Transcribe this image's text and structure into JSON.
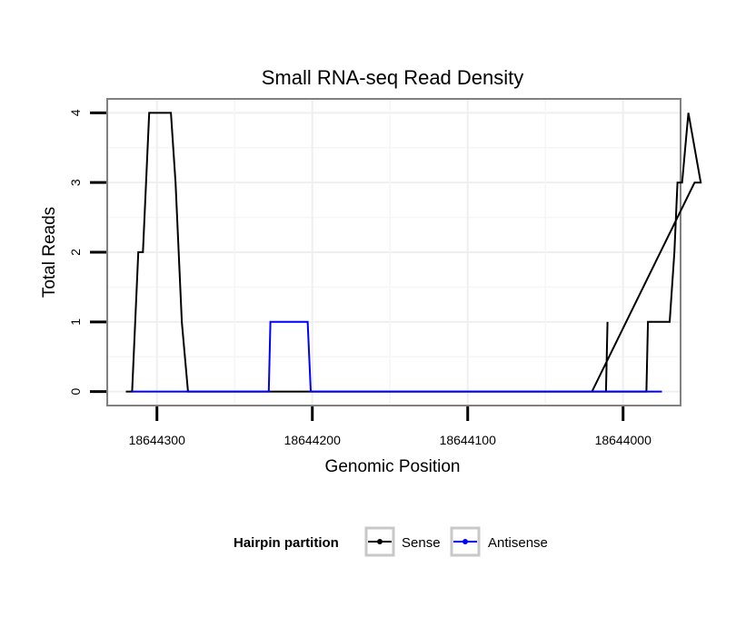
{
  "chart_data": {
    "type": "line",
    "title": "Small RNA-seq Read Density",
    "xlabel": "Genomic Position",
    "ylabel": "Total Reads",
    "x_reversed": true,
    "xlim": [
      18644332,
      18643963
    ],
    "ylim": [
      -0.2,
      4.2
    ],
    "x_ticks": [
      18644300,
      18644200,
      18644100,
      18644000
    ],
    "x_tick_labels": [
      "18644300",
      "18644200",
      "18644100",
      "18644000"
    ],
    "y_ticks": [
      0,
      1,
      2,
      3,
      4
    ],
    "y_tick_labels": [
      "0",
      "1",
      "2",
      "3",
      "4"
    ],
    "grid": true,
    "legend": {
      "title": "Hairpin partition",
      "position": "bottom"
    },
    "series": [
      {
        "name": "Sense",
        "color": "#000000",
        "x": [
          18644320,
          18644316,
          18644312,
          18644309,
          18644305,
          18644300,
          18644291,
          18644288,
          18644284,
          18644280,
          18644210,
          18644180,
          18644170,
          18644100,
          18644000,
          18643985,
          18643984,
          18643970,
          18643967,
          18643965,
          18643962,
          18643958,
          18643950,
          18643954,
          18644020,
          18644011,
          18644010
        ],
        "y": [
          0,
          0,
          2,
          2,
          4,
          4,
          4,
          3,
          1,
          0,
          0,
          0,
          0,
          0,
          0,
          0,
          1,
          1,
          2,
          3,
          3,
          4,
          3,
          3,
          0,
          0,
          1
        ]
      },
      {
        "name": "Antisense",
        "color": "#0000ff",
        "x": [
          18644316,
          18644285,
          18644228,
          18644227,
          18644203,
          18644201,
          18644019,
          18643975
        ],
        "y": [
          0,
          0,
          0,
          1,
          1,
          0,
          0,
          0
        ]
      }
    ]
  }
}
